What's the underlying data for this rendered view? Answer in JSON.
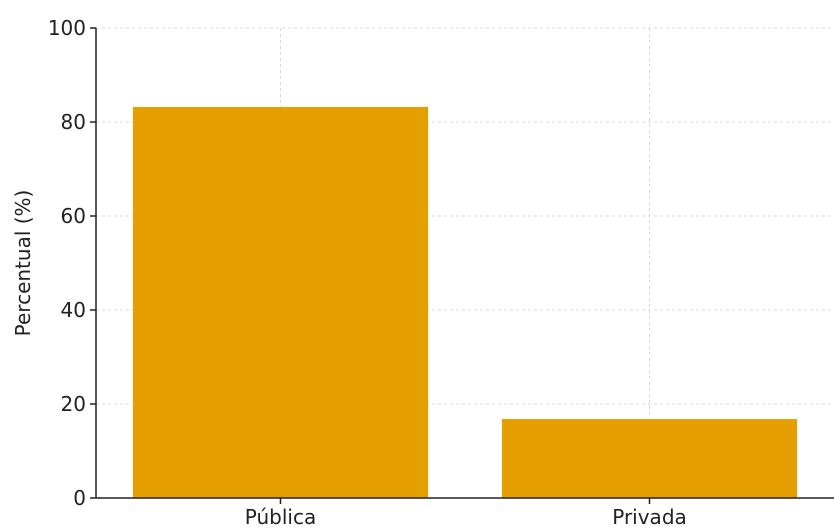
{
  "chart_data": {
    "type": "bar",
    "title": "",
    "xlabel": "",
    "ylabel": "Percentual (%)",
    "categories": [
      "Pública",
      "Privada"
    ],
    "values": [
      83.2,
      16.8
    ],
    "ylim": [
      0,
      100
    ],
    "yticks": [
      0,
      20,
      40,
      60,
      80,
      100
    ],
    "grid": true,
    "bar_color": "#E69F00",
    "grid_color": "#d9d9d9",
    "axis_color": "#222222"
  }
}
